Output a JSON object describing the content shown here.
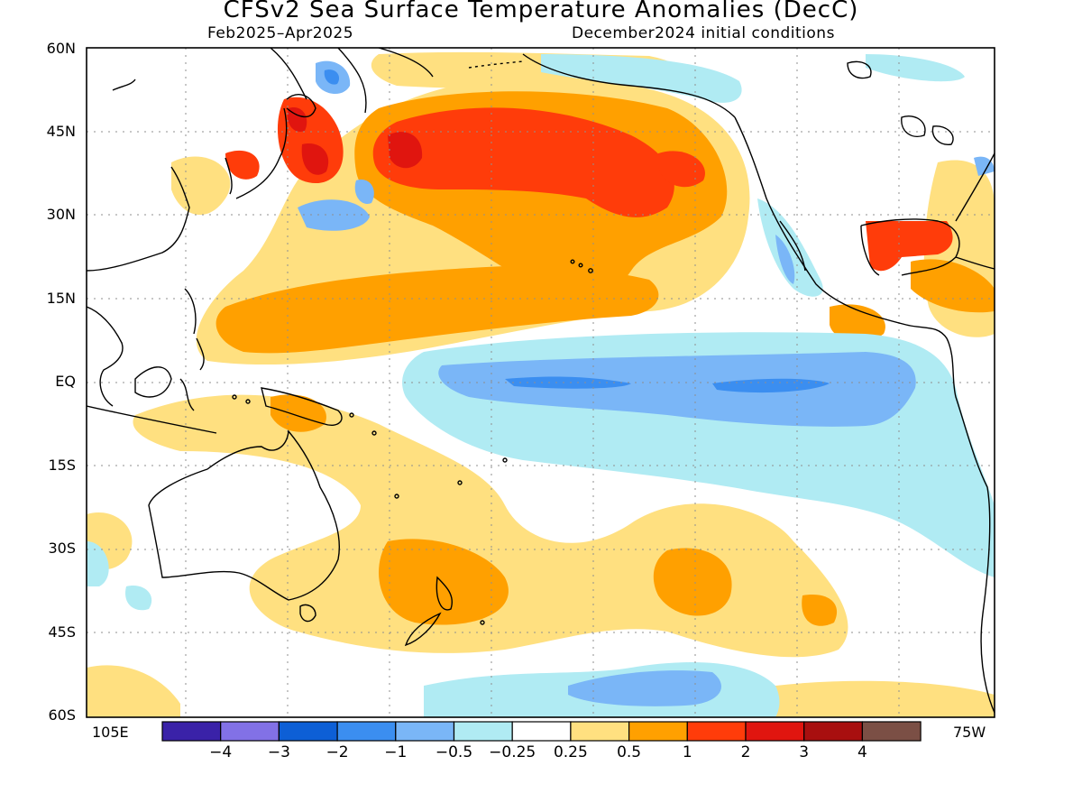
{
  "title": "CFSv2 Sea Surface Temperature Anomalies (DecC)",
  "subtitle_left": "Feb2025–Apr2025",
  "subtitle_right": "December2024 initial conditions",
  "lat_labels": [
    "60N",
    "45N",
    "30N",
    "15N",
    "EQ",
    "15S",
    "30S",
    "45S",
    "60S"
  ],
  "lon_left": "105E",
  "lon_right": "75W",
  "colorbar": {
    "ticks": [
      "−4",
      "−3",
      "−2",
      "−1",
      "−0.5",
      "−0.25",
      "0.25",
      "0.5",
      "1",
      "2",
      "3",
      "4"
    ],
    "colors": [
      "#3a22a8",
      "#8271e6",
      "#0d5fd6",
      "#3b8ef0",
      "#7ab6f7",
      "#b0ebf3",
      "#ffffff",
      "#ffe080",
      "#ffa000",
      "#ff3c0a",
      "#e0150f",
      "#a80f0f",
      "#7b4f45"
    ]
  },
  "regions": [
    {
      "name": "north-pacific-warm-blob",
      "level": 2
    },
    {
      "name": "japan-sea-warm",
      "level": 2
    },
    {
      "name": "gulf-of-mexico-warm",
      "level": 2
    },
    {
      "name": "equatorial-cold-tongue",
      "level": -1
    },
    {
      "name": "kuroshio-cold-eddy",
      "level": -1
    },
    {
      "name": "bering-sea-cold-eddy",
      "level": -1
    },
    {
      "name": "southern-ocean-cold",
      "level": -1
    },
    {
      "name": "subtropical-warm-band",
      "level": 1
    },
    {
      "name": "south-pacific-warm",
      "level": 1
    }
  ]
}
